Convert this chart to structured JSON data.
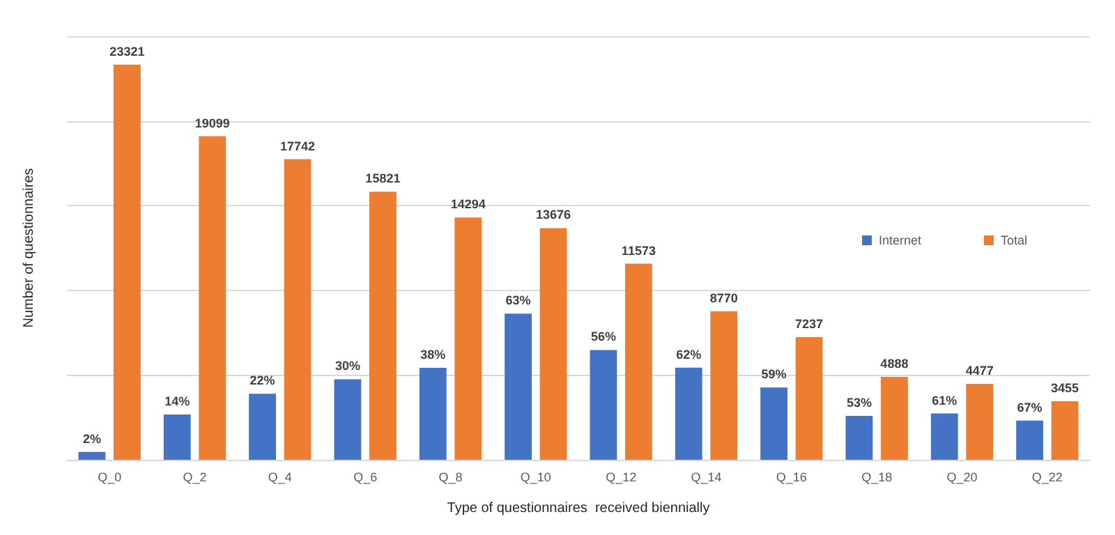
{
  "chart_data": {
    "type": "bar",
    "xlabel": "Type of questionnaires  received biennially",
    "ylabel": "Number of questionnaires",
    "categories": [
      "Q_0",
      "Q_2",
      "Q_4",
      "Q_6",
      "Q_8",
      "Q_10",
      "Q_12",
      "Q_14",
      "Q_16",
      "Q_18",
      "Q_20",
      "Q_22"
    ],
    "series": [
      {
        "name": "Internet",
        "color": "#4472c4",
        "values": [
          466,
          2670,
          3900,
          4750,
          5430,
          8620,
          6480,
          5440,
          4270,
          2590,
          2730,
          2310
        ]
      },
      {
        "name": "Total",
        "color": "#ed7d31",
        "values": [
          23321,
          19099,
          17742,
          15821,
          14294,
          13676,
          11573,
          8770,
          7237,
          4888,
          4477,
          3455
        ],
        "value_labels": [
          "23321",
          "19099",
          "17742",
          "15821",
          "14294",
          "13676",
          "11573",
          "8770",
          "7237",
          "4888",
          "4477",
          "3455"
        ]
      }
    ],
    "annotations": [
      {
        "text": "2%",
        "x": "Q_0",
        "y": 466
      },
      {
        "text": "14%",
        "x": "Q_2",
        "y": 2670
      },
      {
        "text": "22%",
        "x": "Q_4",
        "y": 3900
      },
      {
        "text": "30%",
        "x": "Q_6",
        "y": 4750
      },
      {
        "text": "38%",
        "x": "Q_8",
        "y": 5430
      },
      {
        "text": "63%",
        "x": "Q_10",
        "y": 8620
      },
      {
        "text": "56%",
        "x": "Q_12",
        "y": 6480
      },
      {
        "text": "62%",
        "x": "Q_14",
        "y": 5440
      },
      {
        "text": "59%",
        "x": "Q_16",
        "y": 4270
      },
      {
        "text": "53%",
        "x": "Q_18",
        "y": 2590
      },
      {
        "text": "61%",
        "x": "Q_20",
        "y": 2730
      },
      {
        "text": "67%",
        "x": "Q_22",
        "y": 2310
      }
    ],
    "ylim": [
      0,
      25000
    ],
    "yticks": [
      {
        "value": 0,
        "label": null
      },
      {
        "value": 5000,
        "label": null
      },
      {
        "value": 10000,
        "label": null
      },
      {
        "value": 15000,
        "label": null
      },
      {
        "value": 20000,
        "label": null
      },
      {
        "value": 25000,
        "label": null
      }
    ],
    "tick_labels": "x",
    "grid": "y",
    "legend": "right"
  }
}
